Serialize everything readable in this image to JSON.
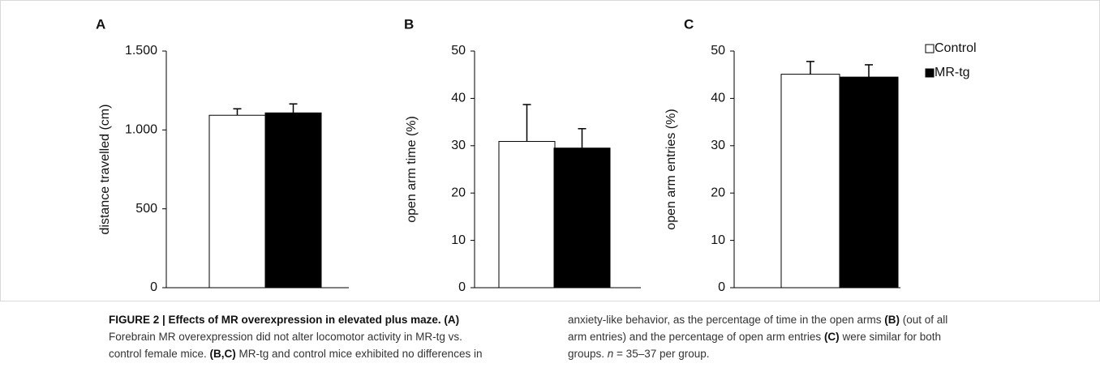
{
  "chart_data": [
    {
      "type": "bar",
      "panel": "A",
      "y_label": "distance travelled (cm)",
      "ylim": [
        0,
        1500
      ],
      "yticks": [
        0,
        500,
        {
          "value": 1000,
          "label": "1.000"
        },
        {
          "value": 1500,
          "label": "1.500"
        }
      ],
      "series": [
        {
          "color": "#ffffff",
          "values": [
            1093
          ],
          "errors": [
            41
          ]
        },
        {
          "color": "#000000",
          "values": [
            1108
          ],
          "errors": [
            57
          ]
        }
      ]
    },
    {
      "type": "bar",
      "panel": "B",
      "y_label": "open arm time (%)",
      "ylim": [
        0,
        50
      ],
      "yticks": [
        0,
        10,
        20,
        30,
        40,
        50
      ],
      "series": [
        {
          "color": "#ffffff",
          "values": [
            30.9
          ],
          "errors": [
            7.8
          ]
        },
        {
          "color": "#000000",
          "values": [
            29.5
          ],
          "errors": [
            4.1
          ]
        }
      ]
    },
    {
      "type": "bar",
      "panel": "C",
      "y_label": "open arm entries  (%)",
      "ylim": [
        0,
        50
      ],
      "yticks": [
        0,
        10,
        20,
        30,
        40,
        50
      ],
      "legend": "upper right",
      "series": [
        {
          "name": "Control",
          "color": "#ffffff",
          "values": [
            45.1
          ],
          "errors": [
            2.7
          ]
        },
        {
          "name": "MR-tg",
          "color": "#000000",
          "values": [
            44.5
          ],
          "errors": [
            2.6
          ]
        }
      ]
    }
  ],
  "caption": {
    "columns": [
      [
        [
          {
            "text": "FIGURE 2 | Effects of MR overexpression in elevated plus maze. (A)",
            "style": "bold"
          }
        ],
        [
          {
            "text": "Forebrain MR overexpression did not alter locomotor activity in MR-tg vs.",
            "style": "plain"
          }
        ],
        [
          {
            "text": "control female mice. ",
            "style": "plain"
          },
          {
            "text": "(B,C)",
            "style": "bold"
          },
          {
            "text": " MR-tg and control mice exhibited no differences in",
            "style": "plain"
          }
        ]
      ],
      [
        [
          {
            "text": "anxiety-like behavior, as the percentage of time in the open arms ",
            "style": "plain"
          },
          {
            "text": "(B)",
            "style": "bold"
          },
          {
            "text": " (out of all",
            "style": "plain"
          }
        ],
        [
          {
            "text": "arm entries) and the percentage of open arm entries ",
            "style": "plain"
          },
          {
            "text": "(C)",
            "style": "bold"
          },
          {
            "text": " were similar for both",
            "style": "plain"
          }
        ],
        [
          {
            "text": "groups. ",
            "style": "plain"
          },
          {
            "text": "n",
            "style": "italic"
          },
          {
            "text": " = 35–37 per group.",
            "style": "plain"
          }
        ]
      ]
    ]
  }
}
